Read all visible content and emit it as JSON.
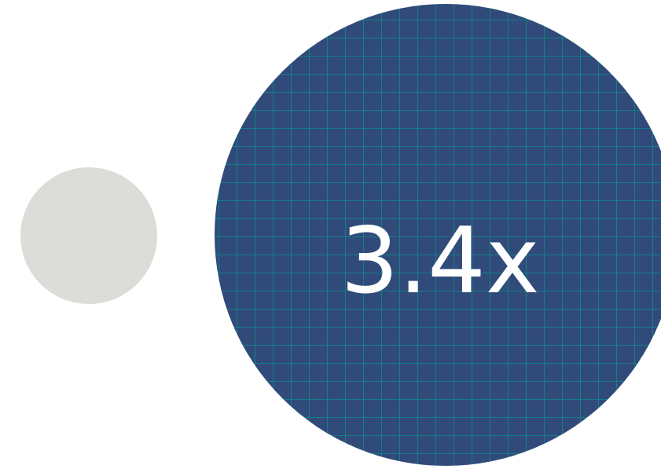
{
  "chart_data": {
    "type": "bubble-comparison",
    "items": [
      {
        "value": 1,
        "color": "#dcdcd8"
      },
      {
        "value": 3.4,
        "label": "3.4x",
        "color": "#304b7a",
        "grid_color": "#0d8c8a"
      }
    ],
    "grid": true
  }
}
